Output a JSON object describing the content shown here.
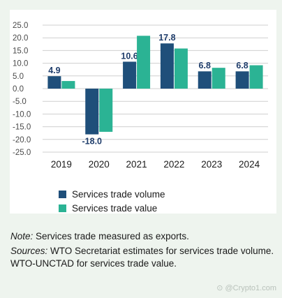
{
  "chart_data": {
    "type": "bar",
    "title": "",
    "xlabel": "",
    "ylabel": "",
    "categories": [
      "2019",
      "2020",
      "2021",
      "2022",
      "2023",
      "2024"
    ],
    "ylim": [
      -25,
      25
    ],
    "yticks": [
      "25.0",
      "20.0",
      "15.0",
      "10.0",
      "5.0",
      "0.0",
      "-5.0",
      "-10.0",
      "-15.0",
      "-20.0",
      "-25.0"
    ],
    "grid": true,
    "legend_position": "bottom-left",
    "series": [
      {
        "name": "Services trade volume",
        "color": "#1f4f7a",
        "values": [
          4.9,
          -18.0,
          10.6,
          17.8,
          6.8,
          6.8
        ],
        "labels": [
          "4.9",
          "-18.0",
          "10.6",
          "17.8",
          "6.8",
          "6.8"
        ]
      },
      {
        "name": "Services trade value",
        "color": "#2bb394",
        "values": [
          3.0,
          -17.0,
          20.8,
          15.8,
          8.2,
          9.2
        ]
      }
    ]
  },
  "notes": {
    "note_label": "Note:",
    "note_text": " Services trade measured as exports.",
    "sources_label": "Sources:",
    "sources_text": " WTO Secretariat estimates for services trade volume. WTO-UNCTAD for services trade value."
  },
  "watermark": "⊙ @Crypto1.com"
}
